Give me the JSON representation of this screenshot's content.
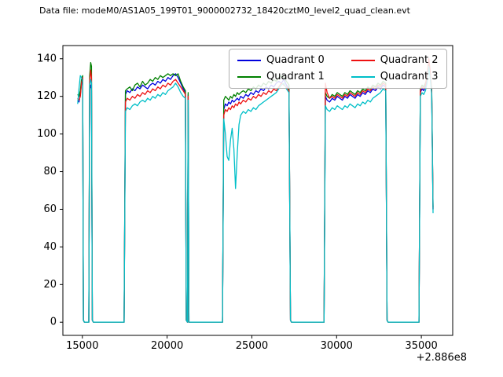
{
  "header": {
    "title": "Data file: modeM0/AS1A05_199T01_9000002732_18420cztM0_level2_quad_clean.evt"
  },
  "chart_data": {
    "type": "line",
    "title": "Data file: modeM0/AS1A05_199T01_9000002732_18420cztM0_level2_quad_clean.evt",
    "xlabel": "",
    "ylabel": "",
    "x_offset_label": "+2.886e8",
    "xlim": [
      13850,
      36850
    ],
    "ylim": [
      -7,
      147
    ],
    "x_ticks": [
      15000,
      20000,
      25000,
      30000,
      35000
    ],
    "y_ticks": [
      0,
      20,
      40,
      60,
      80,
      100,
      120,
      140
    ],
    "grid": false,
    "legend_position": "upper center-right, 2 columns",
    "x": [
      14720,
      14800,
      14880,
      14950,
      15020,
      15060,
      15120,
      15380,
      15430,
      15490,
      15540,
      15590,
      15650,
      17460,
      17540,
      17650,
      17800,
      17950,
      18100,
      18250,
      18400,
      18550,
      18700,
      18850,
      19000,
      19150,
      19300,
      19450,
      19600,
      19750,
      19900,
      20050,
      20200,
      20350,
      20500,
      20650,
      20800,
      20950,
      21080,
      21130,
      21200,
      21240,
      21290,
      23270,
      23340,
      23440,
      23540,
      23640,
      23740,
      23840,
      23940,
      24040,
      24140,
      24240,
      24340,
      24490,
      24640,
      24790,
      24940,
      25090,
      25240,
      25390,
      25540,
      25690,
      25840,
      25990,
      26140,
      26290,
      26440,
      26590,
      26740,
      26890,
      27040,
      27190,
      27280,
      27340,
      29260,
      29340,
      29440,
      29590,
      29740,
      29890,
      30040,
      30190,
      30340,
      30490,
      30640,
      30790,
      30940,
      31090,
      31240,
      31390,
      31540,
      31690,
      31840,
      31990,
      32140,
      32290,
      32440,
      32590,
      32740,
      32900,
      32980,
      33040,
      34860,
      34940,
      35040,
      35140,
      35240,
      35340,
      35440,
      35530,
      35610,
      35690
    ],
    "series": [
      {
        "name": "Quadrant 0",
        "color": "#0000dd",
        "values": [
          118,
          117,
          121,
          127,
          129,
          1,
          0,
          0,
          124,
          126,
          123,
          1,
          0,
          0,
          121,
          123,
          122,
          124,
          123,
          125,
          124,
          126,
          125,
          124,
          126,
          127,
          126,
          128,
          127,
          129,
          128,
          130,
          129,
          131,
          132,
          130,
          127,
          124,
          122,
          1,
          0,
          121,
          0,
          0,
          113,
          116,
          115,
          117,
          116,
          118,
          117,
          118,
          119,
          118,
          120,
          119,
          121,
          120,
          122,
          121,
          123,
          122,
          124,
          123,
          125,
          124,
          126,
          125,
          127,
          128,
          127,
          129,
          126,
          124,
          1,
          0,
          0,
          120,
          118,
          117,
          119,
          118,
          120,
          119,
          118,
          120,
          119,
          121,
          120,
          119,
          121,
          120,
          122,
          121,
          123,
          122,
          124,
          123,
          125,
          124,
          126,
          125,
          1,
          0,
          0,
          122,
          124,
          123,
          125,
          128,
          136,
          130,
          122,
          60
        ]
      },
      {
        "name": "Quadrant 1",
        "color": "#008000",
        "values": [
          121,
          120,
          123,
          129,
          131,
          1,
          0,
          0,
          131,
          138,
          136,
          1,
          0,
          0,
          123,
          124,
          125,
          123,
          126,
          127,
          125,
          128,
          126,
          127,
          129,
          128,
          130,
          129,
          131,
          130,
          131,
          132,
          131,
          132,
          131,
          132,
          128,
          125,
          123,
          1,
          0,
          122,
          0,
          0,
          118,
          120,
          119,
          118,
          120,
          119,
          121,
          120,
          122,
          121,
          122,
          123,
          122,
          124,
          123,
          125,
          124,
          126,
          125,
          127,
          126,
          128,
          127,
          129,
          128,
          130,
          131,
          130,
          128,
          126,
          1,
          0,
          0,
          122,
          120,
          119,
          121,
          120,
          122,
          121,
          120,
          122,
          121,
          123,
          122,
          121,
          123,
          122,
          124,
          123,
          125,
          124,
          126,
          125,
          127,
          126,
          128,
          127,
          1,
          0,
          0,
          124,
          126,
          125,
          127,
          130,
          138,
          132,
          124,
          61
        ]
      },
      {
        "name": "Quadrant 2",
        "color": "#ee1111",
        "values": [
          119,
          118,
          120,
          127,
          130,
          1,
          0,
          0,
          128,
          134,
          130,
          1,
          0,
          0,
          117,
          119,
          118,
          120,
          119,
          121,
          120,
          122,
          121,
          123,
          122,
          124,
          123,
          125,
          124,
          126,
          125,
          127,
          126,
          128,
          129,
          127,
          125,
          123,
          121,
          1,
          0,
          120,
          0,
          0,
          110,
          113,
          112,
          114,
          113,
          115,
          114,
          116,
          115,
          117,
          116,
          118,
          117,
          119,
          118,
          120,
          119,
          121,
          120,
          122,
          121,
          123,
          122,
          124,
          123,
          125,
          127,
          126,
          125,
          123,
          1,
          0,
          0,
          127,
          122,
          119,
          120,
          119,
          121,
          120,
          119,
          121,
          120,
          122,
          121,
          120,
          122,
          121,
          123,
          122,
          124,
          123,
          125,
          124,
          126,
          125,
          127,
          126,
          1,
          0,
          0,
          123,
          125,
          124,
          126,
          131,
          140,
          133,
          123,
          60
        ]
      },
      {
        "name": "Quadrant 3",
        "color": "#00bfc8",
        "values": [
          116,
          124,
          131,
          130,
          128,
          1,
          0,
          0,
          126,
          129,
          127,
          1,
          0,
          0,
          112,
          114,
          113,
          115,
          116,
          115,
          117,
          118,
          117,
          119,
          118,
          120,
          119,
          121,
          120,
          122,
          121,
          123,
          124,
          125,
          127,
          125,
          122,
          120,
          119,
          1,
          0,
          118,
          0,
          0,
          108,
          100,
          88,
          86,
          97,
          103,
          92,
          71,
          90,
          105,
          110,
          112,
          111,
          113,
          112,
          114,
          113,
          115,
          116,
          117,
          118,
          119,
          120,
          121,
          122,
          124,
          126,
          127,
          124,
          122,
          1,
          0,
          0,
          115,
          113,
          112,
          114,
          113,
          115,
          114,
          113,
          115,
          114,
          116,
          115,
          114,
          116,
          115,
          117,
          116,
          118,
          117,
          119,
          120,
          121,
          122,
          124,
          123,
          1,
          0,
          0,
          120,
          122,
          121,
          123,
          127,
          136,
          129,
          121,
          58
        ]
      }
    ]
  }
}
